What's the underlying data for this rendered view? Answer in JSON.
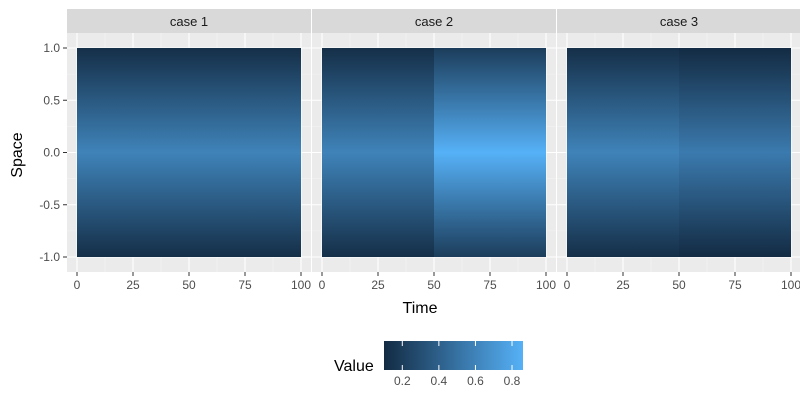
{
  "chart_data": {
    "type": "heatmap",
    "xlabel": "Time",
    "ylabel": "Space",
    "x_ticks": [
      0,
      25,
      50,
      75,
      100
    ],
    "y_ticks": [
      1.0,
      0.5,
      0.0,
      -0.5,
      -1.0
    ],
    "y_tick_labels": [
      "1.0",
      "0.5",
      "0.0",
      "-0.5",
      "-1.0"
    ],
    "xlim": [
      0,
      100
    ],
    "ylim": [
      -1.0,
      1.0
    ],
    "grid": true,
    "colorscale": {
      "low_color": "#132B43",
      "high_color": "#56B1F7",
      "limits": [
        0.1,
        0.86
      ]
    },
    "facets": [
      {
        "label": "case 1",
        "segments": [
          {
            "x_range": [
              0,
              100
            ],
            "center_value": 0.6,
            "edge_value": 0.12
          }
        ]
      },
      {
        "label": "case 2",
        "segments": [
          {
            "x_range": [
              0,
              50
            ],
            "center_value": 0.6,
            "edge_value": 0.12
          },
          {
            "x_range": [
              50,
              100
            ],
            "center_value": 0.86,
            "edge_value": 0.2
          }
        ]
      },
      {
        "label": "case 3",
        "segments": [
          {
            "x_range": [
              0,
              50
            ],
            "center_value": 0.6,
            "edge_value": 0.12
          },
          {
            "x_range": [
              50,
              100
            ],
            "center_value": 0.55,
            "edge_value": 0.08
          }
        ]
      }
    ],
    "legend": {
      "title": "Value",
      "position": "bottom",
      "ticks": [
        0.2,
        0.4,
        0.6,
        0.8
      ],
      "tick_labels": [
        "0.2",
        "0.4",
        "0.6",
        "0.8"
      ]
    }
  }
}
